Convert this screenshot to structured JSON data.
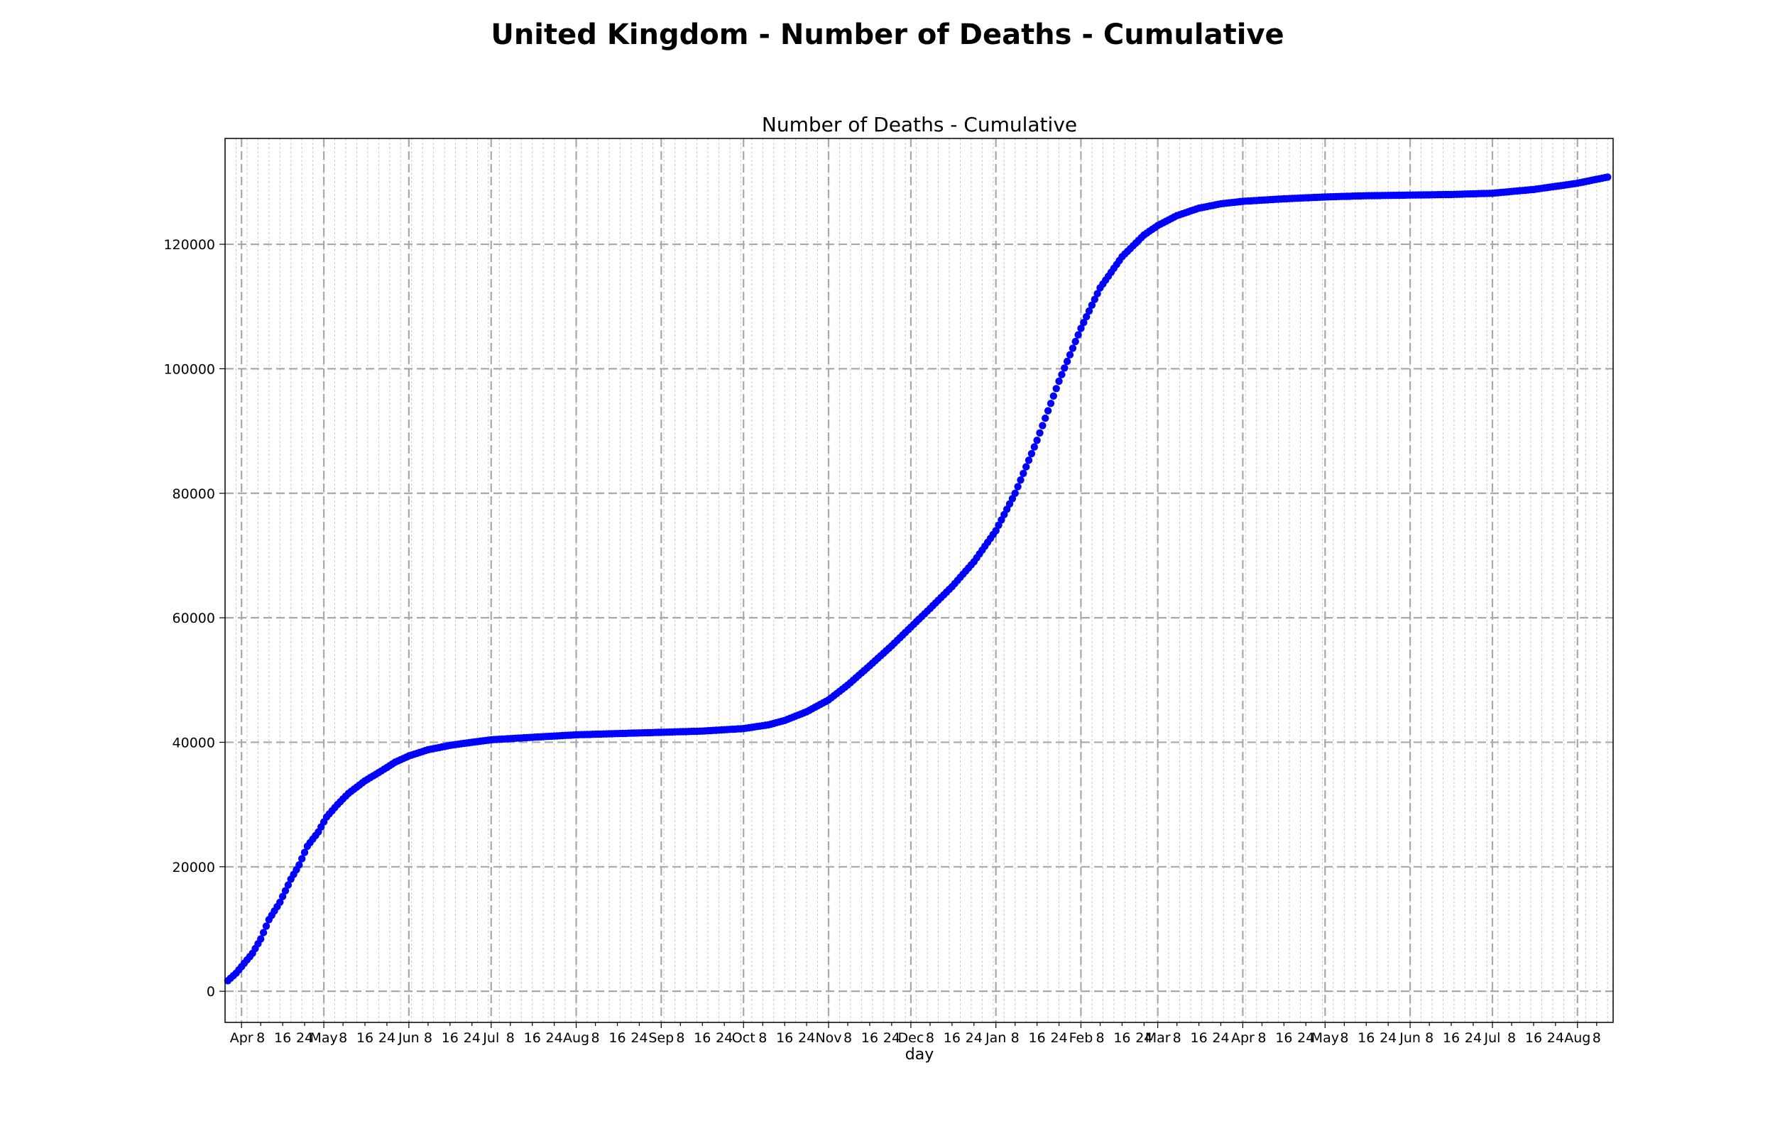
{
  "figure": {
    "title": "United Kingdom - Number of Deaths - Cumulative"
  },
  "chart_data": {
    "type": "scatter",
    "title": "Number of Deaths - Cumulative",
    "xlabel": "day",
    "ylabel": "",
    "xlim": [
      "2020-03-26",
      "2021-08-14"
    ],
    "ylim": [
      -5000,
      137000
    ],
    "y_ticks": [
      0,
      20000,
      40000,
      60000,
      80000,
      100000,
      120000
    ],
    "x_ticks": [
      {
        "date": "2020-04-01",
        "label": "Apr",
        "major": true
      },
      {
        "date": "2020-04-08",
        "label": "8",
        "major": false
      },
      {
        "date": "2020-04-16",
        "label": "16",
        "major": false
      },
      {
        "date": "2020-04-24",
        "label": "24",
        "major": false
      },
      {
        "date": "2020-05-01",
        "label": "May",
        "major": true
      },
      {
        "date": "2020-05-08",
        "label": "8",
        "major": false
      },
      {
        "date": "2020-05-16",
        "label": "16",
        "major": false
      },
      {
        "date": "2020-05-24",
        "label": "24",
        "major": false
      },
      {
        "date": "2020-06-01",
        "label": "Jun",
        "major": true
      },
      {
        "date": "2020-06-08",
        "label": "8",
        "major": false
      },
      {
        "date": "2020-06-16",
        "label": "16",
        "major": false
      },
      {
        "date": "2020-06-24",
        "label": "24",
        "major": false
      },
      {
        "date": "2020-07-01",
        "label": "Jul",
        "major": true
      },
      {
        "date": "2020-07-08",
        "label": "8",
        "major": false
      },
      {
        "date": "2020-07-16",
        "label": "16",
        "major": false
      },
      {
        "date": "2020-07-24",
        "label": "24",
        "major": false
      },
      {
        "date": "2020-08-01",
        "label": "Aug",
        "major": true
      },
      {
        "date": "2020-08-08",
        "label": "8",
        "major": false
      },
      {
        "date": "2020-08-16",
        "label": "16",
        "major": false
      },
      {
        "date": "2020-08-24",
        "label": "24",
        "major": false
      },
      {
        "date": "2020-09-01",
        "label": "Sep",
        "major": true
      },
      {
        "date": "2020-09-08",
        "label": "8",
        "major": false
      },
      {
        "date": "2020-09-16",
        "label": "16",
        "major": false
      },
      {
        "date": "2020-09-24",
        "label": "24",
        "major": false
      },
      {
        "date": "2020-10-01",
        "label": "Oct",
        "major": true
      },
      {
        "date": "2020-10-08",
        "label": "8",
        "major": false
      },
      {
        "date": "2020-10-16",
        "label": "16",
        "major": false
      },
      {
        "date": "2020-10-24",
        "label": "24",
        "major": false
      },
      {
        "date": "2020-11-01",
        "label": "Nov",
        "major": true
      },
      {
        "date": "2020-11-08",
        "label": "8",
        "major": false
      },
      {
        "date": "2020-11-16",
        "label": "16",
        "major": false
      },
      {
        "date": "2020-11-24",
        "label": "24",
        "major": false
      },
      {
        "date": "2020-12-01",
        "label": "Dec",
        "major": true
      },
      {
        "date": "2020-12-08",
        "label": "8",
        "major": false
      },
      {
        "date": "2020-12-16",
        "label": "16",
        "major": false
      },
      {
        "date": "2020-12-24",
        "label": "24",
        "major": false
      },
      {
        "date": "2021-01-01",
        "label": "Jan",
        "major": true
      },
      {
        "date": "2021-01-08",
        "label": "8",
        "major": false
      },
      {
        "date": "2021-01-16",
        "label": "16",
        "major": false
      },
      {
        "date": "2021-01-24",
        "label": "24",
        "major": false
      },
      {
        "date": "2021-02-01",
        "label": "Feb",
        "major": true
      },
      {
        "date": "2021-02-08",
        "label": "8",
        "major": false
      },
      {
        "date": "2021-02-16",
        "label": "16",
        "major": false
      },
      {
        "date": "2021-02-24",
        "label": "24",
        "major": false
      },
      {
        "date": "2021-03-01",
        "label": "Mar",
        "major": true
      },
      {
        "date": "2021-03-08",
        "label": "8",
        "major": false
      },
      {
        "date": "2021-03-16",
        "label": "16",
        "major": false
      },
      {
        "date": "2021-03-24",
        "label": "24",
        "major": false
      },
      {
        "date": "2021-04-01",
        "label": "Apr",
        "major": true
      },
      {
        "date": "2021-04-08",
        "label": "8",
        "major": false
      },
      {
        "date": "2021-04-16",
        "label": "16",
        "major": false
      },
      {
        "date": "2021-04-24",
        "label": "24",
        "major": false
      },
      {
        "date": "2021-05-01",
        "label": "May",
        "major": true
      },
      {
        "date": "2021-05-08",
        "label": "8",
        "major": false
      },
      {
        "date": "2021-05-16",
        "label": "16",
        "major": false
      },
      {
        "date": "2021-05-24",
        "label": "24",
        "major": false
      },
      {
        "date": "2021-06-01",
        "label": "Jun",
        "major": true
      },
      {
        "date": "2021-06-08",
        "label": "8",
        "major": false
      },
      {
        "date": "2021-06-16",
        "label": "16",
        "major": false
      },
      {
        "date": "2021-06-24",
        "label": "24",
        "major": false
      },
      {
        "date": "2021-07-01",
        "label": "Jul",
        "major": true
      },
      {
        "date": "2021-07-08",
        "label": "8",
        "major": false
      },
      {
        "date": "2021-07-16",
        "label": "16",
        "major": false
      },
      {
        "date": "2021-07-24",
        "label": "24",
        "major": false
      },
      {
        "date": "2021-08-01",
        "label": "Aug",
        "major": true
      },
      {
        "date": "2021-08-08",
        "label": "8",
        "major": false
      }
    ],
    "grid": {
      "major": true,
      "minor": true,
      "style": "dashed"
    },
    "series": [
      {
        "color": "#0000ff",
        "marker": "circle",
        "frequency": "daily",
        "start_date": "2020-03-27",
        "end_date": "2021-08-12",
        "anchors": [
          {
            "date": "2020-03-27",
            "y": 1700
          },
          {
            "date": "2020-03-30",
            "y": 2900
          },
          {
            "date": "2020-04-02",
            "y": 4500
          },
          {
            "date": "2020-04-05",
            "y": 6100
          },
          {
            "date": "2020-04-08",
            "y": 8400
          },
          {
            "date": "2020-04-11",
            "y": 11500
          },
          {
            "date": "2020-04-15",
            "y": 14300
          },
          {
            "date": "2020-04-19",
            "y": 18000
          },
          {
            "date": "2020-04-22",
            "y": 20300
          },
          {
            "date": "2020-04-25",
            "y": 23300
          },
          {
            "date": "2020-04-29",
            "y": 25600
          },
          {
            "date": "2020-05-02",
            "y": 28000
          },
          {
            "date": "2020-05-06",
            "y": 30000
          },
          {
            "date": "2020-05-10",
            "y": 31800
          },
          {
            "date": "2020-05-16",
            "y": 33800
          },
          {
            "date": "2020-05-22",
            "y": 35400
          },
          {
            "date": "2020-05-27",
            "y": 36800
          },
          {
            "date": "2020-06-01",
            "y": 37800
          },
          {
            "date": "2020-06-08",
            "y": 38800
          },
          {
            "date": "2020-06-16",
            "y": 39500
          },
          {
            "date": "2020-06-24",
            "y": 40000
          },
          {
            "date": "2020-07-01",
            "y": 40400
          },
          {
            "date": "2020-07-16",
            "y": 40800
          },
          {
            "date": "2020-08-01",
            "y": 41200
          },
          {
            "date": "2020-08-16",
            "y": 41400
          },
          {
            "date": "2020-09-01",
            "y": 41600
          },
          {
            "date": "2020-09-16",
            "y": 41800
          },
          {
            "date": "2020-10-01",
            "y": 42200
          },
          {
            "date": "2020-10-10",
            "y": 42800
          },
          {
            "date": "2020-10-16",
            "y": 43500
          },
          {
            "date": "2020-10-24",
            "y": 44900
          },
          {
            "date": "2020-11-01",
            "y": 46800
          },
          {
            "date": "2020-11-08",
            "y": 49200
          },
          {
            "date": "2020-11-16",
            "y": 52300
          },
          {
            "date": "2020-11-24",
            "y": 55500
          },
          {
            "date": "2020-12-01",
            "y": 58500
          },
          {
            "date": "2020-12-08",
            "y": 61500
          },
          {
            "date": "2020-12-16",
            "y": 65000
          },
          {
            "date": "2020-12-24",
            "y": 69000
          },
          {
            "date": "2021-01-01",
            "y": 74000
          },
          {
            "date": "2021-01-08",
            "y": 80000
          },
          {
            "date": "2021-01-16",
            "y": 88500
          },
          {
            "date": "2021-01-24",
            "y": 98000
          },
          {
            "date": "2021-02-01",
            "y": 106500
          },
          {
            "date": "2021-02-08",
            "y": 113000
          },
          {
            "date": "2021-02-16",
            "y": 118000
          },
          {
            "date": "2021-02-24",
            "y": 121500
          },
          {
            "date": "2021-03-01",
            "y": 123000
          },
          {
            "date": "2021-03-08",
            "y": 124600
          },
          {
            "date": "2021-03-16",
            "y": 125800
          },
          {
            "date": "2021-03-24",
            "y": 126500
          },
          {
            "date": "2021-04-01",
            "y": 126900
          },
          {
            "date": "2021-04-16",
            "y": 127300
          },
          {
            "date": "2021-05-01",
            "y": 127600
          },
          {
            "date": "2021-05-16",
            "y": 127800
          },
          {
            "date": "2021-06-01",
            "y": 127900
          },
          {
            "date": "2021-06-16",
            "y": 128000
          },
          {
            "date": "2021-07-01",
            "y": 128200
          },
          {
            "date": "2021-07-16",
            "y": 128800
          },
          {
            "date": "2021-08-01",
            "y": 129800
          },
          {
            "date": "2021-08-12",
            "y": 130800
          }
        ]
      }
    ]
  }
}
